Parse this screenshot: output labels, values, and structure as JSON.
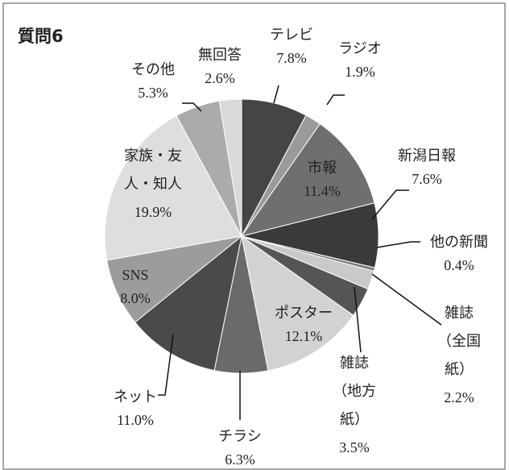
{
  "chart_data": {
    "type": "pie",
    "title": "質問6",
    "categories": [
      "テレビ",
      "ラジオ",
      "市報",
      "新潟日報",
      "他の新聞",
      "雑誌（全国紙）",
      "雑誌（地方紙）",
      "ポスター",
      "チラシ",
      "ネット",
      "SNS",
      "家族・友人・知人",
      "その他",
      "無回答"
    ],
    "values": [
      7.8,
      1.9,
      11.4,
      7.6,
      0.4,
      2.2,
      3.5,
      12.1,
      6.3,
      11.0,
      8.0,
      19.9,
      5.3,
      2.6
    ],
    "value_labels": [
      "7.8%",
      "1.9%",
      "11.4%",
      "7.6%",
      "0.4%",
      "2.2%",
      "3.5%",
      "12.1%",
      "6.3%",
      "11.0%",
      "8.0%",
      "19.9%",
      "5.3%",
      "2.6%"
    ],
    "colors": [
      "#454545",
      "#9a9a9a",
      "#6f6f6f",
      "#3a3a3a",
      "#7a7a7a",
      "#c9c9c9",
      "#555555",
      "#d2d2d2",
      "#6a6a6a",
      "#4a4a4a",
      "#9c9c9c",
      "#dedede",
      "#ababab",
      "#d9d9d9"
    ]
  }
}
